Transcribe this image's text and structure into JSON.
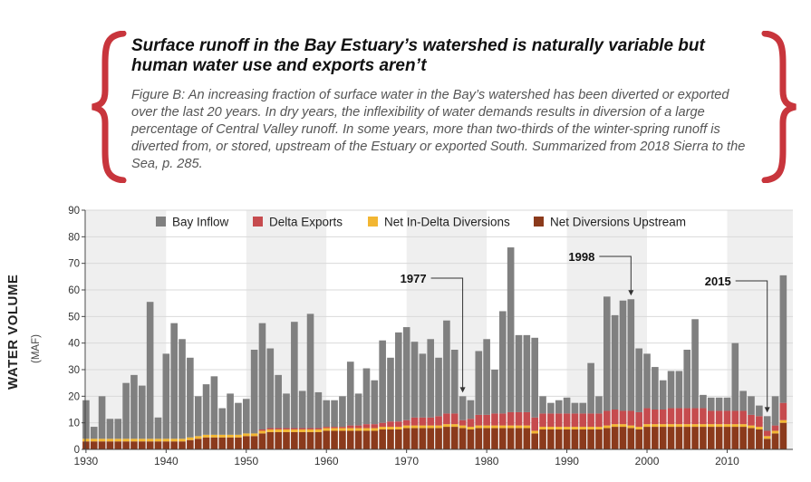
{
  "header": {
    "title": "Surface runoff in the Bay Estuary’s watershed is naturally variable but human water use and exports aren’t",
    "caption": "Figure B: An increasing fraction of surface water in the Bay’s watershed has been diverted or exported over the last 20 years. In dry years, the inflexibility of water demands results in diversion of a large percentage of Central Valley runoff. In some years, more than two-thirds of the winter-spring runoff is diverted from, or stored, upstream of the Estuary or exported South. Summarized from 2018 Sierra to the Sea, p. 285."
  },
  "colors": {
    "brace": "#c8353c",
    "bay_inflow": "#808080",
    "delta_exports": "#c64b4e",
    "in_delta": "#f2b632",
    "upstream": "#8b3a1c",
    "band": "#efefef"
  },
  "chart_data": {
    "type": "bar",
    "stacked": true,
    "ylabel": "WATER VOLUME",
    "ylabel_units": "(MAF)",
    "ylim": [
      0,
      90
    ],
    "yticks": [
      0,
      10,
      20,
      30,
      40,
      50,
      60,
      70,
      80,
      90
    ],
    "xticks": [
      1930,
      1940,
      1950,
      1960,
      1970,
      1980,
      1990,
      2000,
      2010
    ],
    "legend": [
      "Bay Inflow",
      "Delta Exports",
      "Net In-Delta Diversions",
      "Net Diversions Upstream"
    ],
    "legend_position": "top",
    "annotations": [
      {
        "year": 1977,
        "label": "1977"
      },
      {
        "year": 1998,
        "label": "1998"
      },
      {
        "year": 2015,
        "label": "2015"
      }
    ],
    "x": [
      1930,
      1931,
      1932,
      1933,
      1934,
      1935,
      1936,
      1937,
      1938,
      1939,
      1940,
      1941,
      1942,
      1943,
      1944,
      1945,
      1946,
      1947,
      1948,
      1949,
      1950,
      1951,
      1952,
      1953,
      1954,
      1955,
      1956,
      1957,
      1958,
      1959,
      1960,
      1961,
      1962,
      1963,
      1964,
      1965,
      1966,
      1967,
      1968,
      1969,
      1970,
      1971,
      1972,
      1973,
      1974,
      1975,
      1976,
      1977,
      1978,
      1979,
      1980,
      1981,
      1982,
      1983,
      1984,
      1985,
      1986,
      1987,
      1988,
      1989,
      1990,
      1991,
      1992,
      1993,
      1994,
      1995,
      1996,
      1997,
      1998,
      1999,
      2000,
      2001,
      2002,
      2003,
      2004,
      2005,
      2006,
      2007,
      2008,
      2009,
      2010,
      2011,
      2012,
      2013,
      2014,
      2015,
      2016,
      2017
    ],
    "series": [
      {
        "name": "Net Diversions Upstream",
        "values": [
          3,
          3,
          3,
          3,
          3,
          3,
          3,
          3,
          3,
          3,
          3,
          3,
          3,
          3.5,
          4,
          4.5,
          4.5,
          4.5,
          4.5,
          4.5,
          5,
          5,
          6,
          6.5,
          6.5,
          6.5,
          6.5,
          6.5,
          6.5,
          6.5,
          7,
          7,
          7,
          7,
          7,
          7,
          7,
          7.5,
          7.5,
          7.5,
          8,
          8,
          8,
          8,
          8,
          8.5,
          8.5,
          8,
          7.5,
          8,
          8,
          8,
          8,
          8,
          8,
          8,
          6,
          7.5,
          7.5,
          7.5,
          7.5,
          7.5,
          7.5,
          7.5,
          7.5,
          8,
          8.5,
          8.5,
          8,
          7.5,
          8.5,
          8.5,
          8.5,
          8.5,
          8.5,
          8.5,
          8.5,
          8.5,
          8.5,
          8.5,
          8.5,
          8.5,
          8.5,
          8,
          7.5,
          4,
          6,
          10
        ]
      },
      {
        "name": "Net In-Delta Diversions",
        "values": [
          1,
          1,
          1,
          1,
          1,
          1,
          1,
          1,
          1,
          1,
          1,
          1,
          1,
          1,
          1,
          1,
          1,
          1,
          1,
          1,
          1,
          1,
          1,
          1,
          1,
          1,
          1,
          1,
          1,
          1,
          1,
          1,
          1,
          1,
          1,
          1,
          1,
          1,
          1,
          1,
          1,
          1,
          1,
          1,
          1,
          1,
          1,
          1,
          1,
          1,
          1,
          1,
          1,
          1,
          1,
          1,
          1,
          1,
          1,
          1,
          1,
          1,
          1,
          1,
          1,
          1,
          1,
          1,
          1,
          1,
          1,
          1,
          1,
          1,
          1,
          1,
          1,
          1,
          1,
          1,
          1,
          1,
          1,
          1,
          1,
          1,
          1,
          1
        ]
      },
      {
        "name": "Delta Exports",
        "values": [
          0,
          0,
          0,
          0,
          0,
          0,
          0,
          0,
          0,
          0,
          0,
          0,
          0,
          0,
          0,
          0,
          0,
          0,
          0,
          0,
          0,
          0,
          0.5,
          0.5,
          0.5,
          0.5,
          0.5,
          0.5,
          0.5,
          0.5,
          0.5,
          0.5,
          0.5,
          1,
          1,
          1.5,
          1.5,
          1.5,
          2,
          2,
          2,
          3,
          3,
          3,
          3.5,
          4,
          4,
          2,
          3,
          4,
          4,
          4.5,
          4.5,
          5,
          5,
          5,
          5,
          5,
          5,
          5,
          5,
          5,
          5,
          5,
          5,
          5.5,
          5.5,
          5,
          5.5,
          5.5,
          6,
          5.5,
          5.5,
          6,
          6,
          6,
          6,
          6,
          5,
          5,
          5,
          5,
          5,
          4,
          4,
          2,
          2,
          6.5
        ]
      },
      {
        "name": "Bay Inflow",
        "values": [
          14.5,
          4.5,
          16,
          7.5,
          7.5,
          21,
          24,
          20,
          51.5,
          8,
          32,
          43.5,
          37.5,
          30,
          15,
          19,
          22,
          10,
          15.5,
          12,
          13,
          31.5,
          40,
          30,
          20,
          13,
          40,
          14,
          43,
          13.5,
          10,
          10,
          11.5,
          24,
          12,
          21,
          16.5,
          31,
          24,
          33.5,
          35,
          28.5,
          24,
          29.5,
          22,
          35,
          24,
          9,
          7,
          24,
          28.5,
          16.5,
          38.5,
          62,
          29,
          29,
          30,
          6.5,
          4,
          5,
          6,
          4,
          4,
          19,
          6.5,
          43,
          35.5,
          41.5,
          42,
          24,
          20.5,
          16,
          11,
          14,
          14,
          22,
          33.5,
          5,
          5,
          5,
          5,
          25.5,
          7.5,
          7,
          4,
          5.5,
          11,
          48
        ]
      }
    ]
  }
}
